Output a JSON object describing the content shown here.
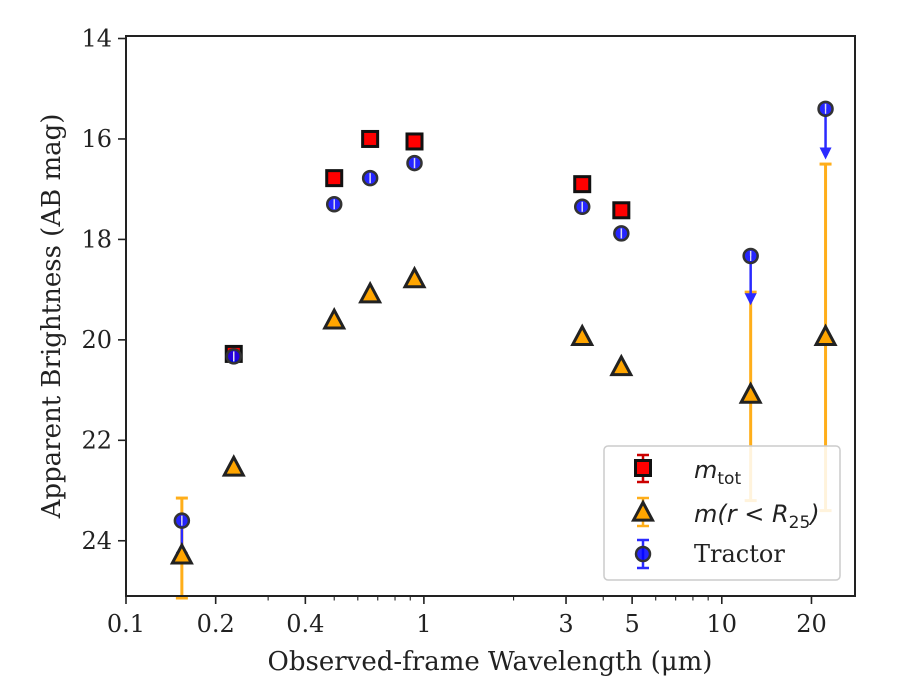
{
  "chart_data": {
    "type": "scatter",
    "xlabel": "Observed-frame Wavelength (μm)",
    "ylabel": "Apparent Brightness (AB mag)",
    "xscale": "log",
    "xlim": [
      0.1,
      28
    ],
    "ylim": [
      25.1,
      13.95
    ],
    "y_inverted": true,
    "grid": false,
    "legend_position": "lower-right",
    "x_ticks": [
      {
        "value": 0.1,
        "label": "0.1"
      },
      {
        "value": 0.2,
        "label": "0.2"
      },
      {
        "value": 0.4,
        "label": "0.4"
      },
      {
        "value": 1,
        "label": "1"
      },
      {
        "value": 3,
        "label": "3"
      },
      {
        "value": 5,
        "label": "5"
      },
      {
        "value": 10,
        "label": "10"
      },
      {
        "value": 20,
        "label": "20"
      }
    ],
    "y_ticks": [
      {
        "value": 14,
        "label": "14"
      },
      {
        "value": 16,
        "label": "16"
      },
      {
        "value": 18,
        "label": "18"
      },
      {
        "value": 20,
        "label": "20"
      },
      {
        "value": 22,
        "label": "22"
      },
      {
        "value": 24,
        "label": "24"
      }
    ],
    "series": [
      {
        "name": "m_tot",
        "legend_label": {
          "main": "m",
          "sub": "tot"
        },
        "marker": "square",
        "color": "#ff0000",
        "edge_color": "#111111",
        "points": [
          {
            "x": 0.23,
            "y": 20.28,
            "yerr": 0.05
          },
          {
            "x": 0.5,
            "y": 16.78,
            "yerr": 0.03
          },
          {
            "x": 0.66,
            "y": 16.0,
            "yerr": 0.03
          },
          {
            "x": 0.93,
            "y": 16.05,
            "yerr": 0.03
          },
          {
            "x": 3.4,
            "y": 16.9,
            "yerr": 0.03
          },
          {
            "x": 4.6,
            "y": 17.42,
            "yerr": 0.03
          }
        ]
      },
      {
        "name": "m(r < R25)",
        "legend_label": {
          "main": "m(r < R",
          "sub": "25",
          "tail": ")"
        },
        "marker": "triangle",
        "color": "#ffa500",
        "edge_color": "#222222",
        "points": [
          {
            "x": 0.154,
            "y": 24.3,
            "ylo": 23.15,
            "yhi": 25.2
          },
          {
            "x": 0.23,
            "y": 22.55
          },
          {
            "x": 0.5,
            "y": 19.62
          },
          {
            "x": 0.66,
            "y": 19.1
          },
          {
            "x": 0.93,
            "y": 18.8
          },
          {
            "x": 3.4,
            "y": 19.95
          },
          {
            "x": 4.6,
            "y": 20.55
          },
          {
            "x": 12.5,
            "y": 21.1,
            "ylo": 19.05,
            "yhi": 23.2
          },
          {
            "x": 22.3,
            "y": 19.95,
            "ylo": 16.5,
            "yhi": 23.4
          }
        ]
      },
      {
        "name": "Tractor",
        "marker": "circle",
        "color": "#0000ff",
        "edge_color": "#333333",
        "points": [
          {
            "x": 0.154,
            "y": 23.6,
            "limit_to": 24.4
          },
          {
            "x": 0.23,
            "y": 20.33
          },
          {
            "x": 0.5,
            "y": 17.3
          },
          {
            "x": 0.66,
            "y": 16.78
          },
          {
            "x": 0.93,
            "y": 16.48
          },
          {
            "x": 3.4,
            "y": 17.35
          },
          {
            "x": 4.6,
            "y": 17.88
          },
          {
            "x": 12.5,
            "y": 18.33,
            "limit_to": 19.25
          },
          {
            "x": 22.3,
            "y": 15.4,
            "limit_to": 16.35
          }
        ]
      }
    ]
  }
}
